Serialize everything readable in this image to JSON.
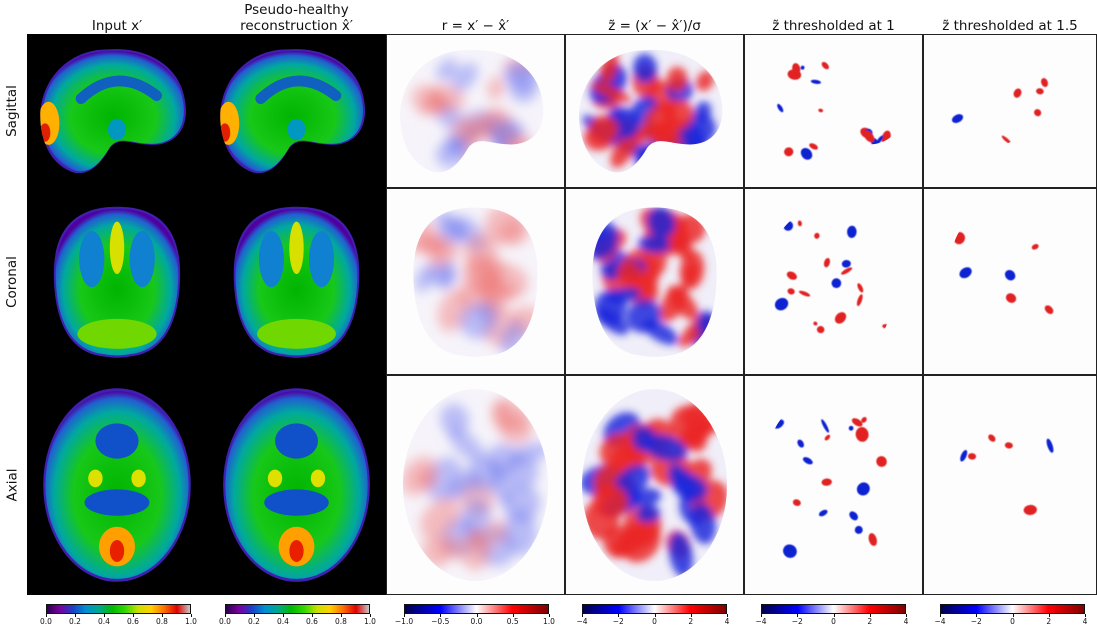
{
  "columns": [
    {
      "title_lines": [
        "Input x′"
      ]
    },
    {
      "title_lines": [
        "Pseudo-healthy",
        "reconstruction x̂′"
      ]
    },
    {
      "title_lines": [
        "r = x′ − x̂′"
      ]
    },
    {
      "title_lines": [
        "z̃ = (x′ − x̂′)/σ"
      ]
    },
    {
      "title_lines": [
        "z̃ thresholded at 1"
      ]
    },
    {
      "title_lines": [
        "z̃ thresholded at 1.5"
      ]
    }
  ],
  "rows": [
    {
      "label": "Sagittal"
    },
    {
      "label": "Coronal"
    },
    {
      "label": "Axial"
    }
  ],
  "colorbars": [
    {
      "colormap": "nipy_spectral",
      "ticks": [
        "0.0",
        "0.2",
        "0.4",
        "0.6",
        "0.8",
        "1.0"
      ]
    },
    {
      "colormap": "nipy_spectral",
      "ticks": [
        "0.0",
        "0.2",
        "0.4",
        "0.6",
        "0.8",
        "1.0"
      ]
    },
    {
      "colormap": "seismic",
      "ticks": [
        "−1.0",
        "−0.5",
        "0.0",
        "0.5",
        "1.0"
      ]
    },
    {
      "colormap": "seismic",
      "ticks": [
        "−4",
        "−2",
        "0",
        "2",
        "4"
      ]
    },
    {
      "colormap": "seismic",
      "ticks": [
        "−4",
        "−2",
        "0",
        "2",
        "4"
      ]
    },
    {
      "colormap": "seismic",
      "ticks": [
        "−4",
        "−2",
        "0",
        "2",
        "4"
      ]
    }
  ],
  "colors": {
    "spectral_gradient": [
      "#2a0050",
      "#7a00a0",
      "#1a40c8",
      "#0090d0",
      "#00a890",
      "#00b800",
      "#30d800",
      "#c8e000",
      "#ffd000",
      "#ff7000",
      "#e00000",
      "#c8c8c8"
    ],
    "seismic_gradient": [
      "#00004c",
      "#0000ff",
      "#ffffff",
      "#ff0000",
      "#7f0000"
    ]
  }
}
